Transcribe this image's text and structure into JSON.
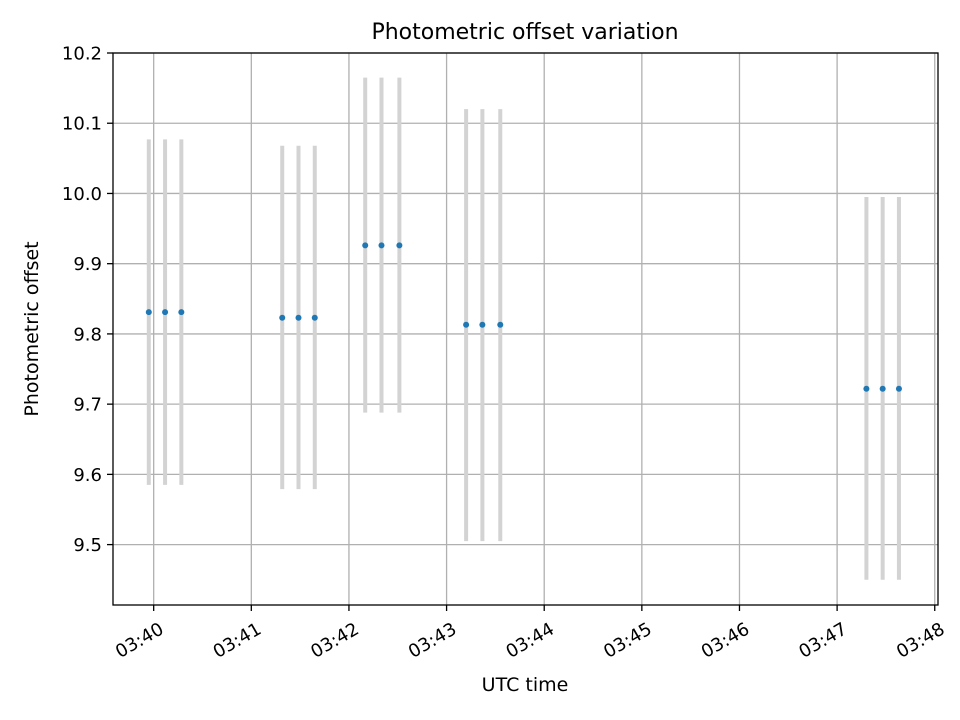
{
  "chart_data": {
    "type": "scatter",
    "title": "Photometric offset variation",
    "xlabel": "UTC time",
    "ylabel": "Photometric offset",
    "x_axis_type": "time",
    "xlim": [
      "03:39:35",
      "03:48:02"
    ],
    "ylim": [
      9.414,
      10.2
    ],
    "x_ticks": [
      "03:40",
      "03:41",
      "03:42",
      "03:43",
      "03:44",
      "03:45",
      "03:46",
      "03:47",
      "03:48"
    ],
    "y_ticks": [
      "9.5",
      "9.6",
      "9.7",
      "9.8",
      "9.9",
      "10.0",
      "10.1",
      "10.2"
    ],
    "grid": true,
    "series": [
      {
        "marker_color": "#1f77b4",
        "errorbar_color": "#d3d3d3",
        "points": [
          {
            "x": "03:39:57",
            "y": 9.831,
            "y_low": 9.585,
            "y_high": 10.077
          },
          {
            "x": "03:40:07",
            "y": 9.831,
            "y_low": 9.585,
            "y_high": 10.077
          },
          {
            "x": "03:40:17",
            "y": 9.831,
            "y_low": 9.585,
            "y_high": 10.077
          },
          {
            "x": "03:41:19",
            "y": 9.823,
            "y_low": 9.579,
            "y_high": 10.068
          },
          {
            "x": "03:41:29",
            "y": 9.823,
            "y_low": 9.579,
            "y_high": 10.068
          },
          {
            "x": "03:41:39",
            "y": 9.823,
            "y_low": 9.579,
            "y_high": 10.068
          },
          {
            "x": "03:42:10",
            "y": 9.926,
            "y_low": 9.688,
            "y_high": 10.165
          },
          {
            "x": "03:42:20",
            "y": 9.926,
            "y_low": 9.688,
            "y_high": 10.165
          },
          {
            "x": "03:42:31",
            "y": 9.926,
            "y_low": 9.688,
            "y_high": 10.165
          },
          {
            "x": "03:43:12",
            "y": 9.813,
            "y_low": 9.505,
            "y_high": 10.12
          },
          {
            "x": "03:43:22",
            "y": 9.813,
            "y_low": 9.505,
            "y_high": 10.12
          },
          {
            "x": "03:43:33",
            "y": 9.813,
            "y_low": 9.505,
            "y_high": 10.12
          },
          {
            "x": "03:47:18",
            "y": 9.722,
            "y_low": 9.45,
            "y_high": 9.995
          },
          {
            "x": "03:47:28",
            "y": 9.722,
            "y_low": 9.45,
            "y_high": 9.995
          },
          {
            "x": "03:47:38",
            "y": 9.722,
            "y_low": 9.45,
            "y_high": 9.995
          }
        ]
      }
    ]
  }
}
